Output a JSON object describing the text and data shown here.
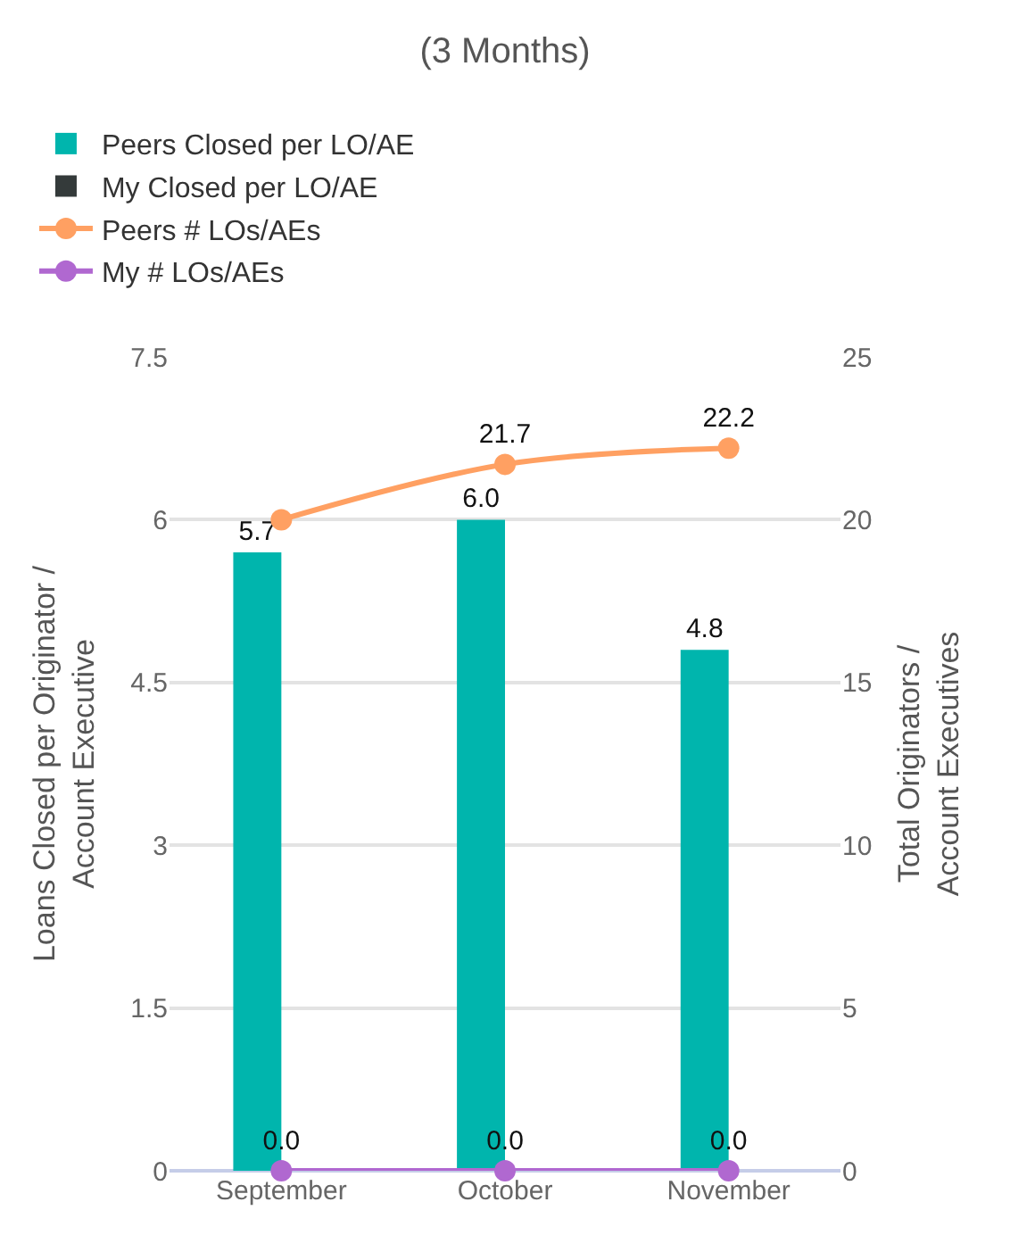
{
  "chart_data": {
    "type": "bar",
    "title": "(3 Months)",
    "categories": [
      "September",
      "October",
      "November"
    ],
    "ylabel": "Loans Closed per Originator / Account Executive",
    "y2label": "Total Originators / Account Executives",
    "ylim": [
      0,
      7.5
    ],
    "yticks": [
      0,
      1.5,
      3,
      4.5,
      6,
      7.5
    ],
    "y2lim": [
      0,
      25
    ],
    "y2ticks": [
      0,
      5,
      10,
      15,
      20,
      25
    ],
    "grid": "y",
    "legend": "top",
    "marker": "circle",
    "series": [
      {
        "name": "Peers Closed per LO/AE",
        "color": "#00b5ad",
        "values": [
          5.7,
          6.0,
          4.8
        ],
        "value_labels": [
          "5.7",
          "6.0",
          "4.8"
        ]
      },
      {
        "name": "My Closed per LO/AE",
        "color": "#343a3a",
        "values": [
          null,
          null,
          null
        ]
      },
      {
        "name": "Peers # LOs/AEs",
        "type": "line",
        "axis": "y2",
        "color": "#ffa062",
        "values": [
          20.0,
          21.7,
          22.2
        ],
        "value_labels": [
          null,
          "21.7",
          "22.2"
        ]
      },
      {
        "name": "My # LOs/AEs",
        "type": "line",
        "axis": "y2",
        "color": "#b068d0",
        "values": [
          0.0,
          0.0,
          0.0
        ],
        "value_labels": [
          "0.0",
          "0.0",
          "0.0"
        ]
      }
    ]
  }
}
